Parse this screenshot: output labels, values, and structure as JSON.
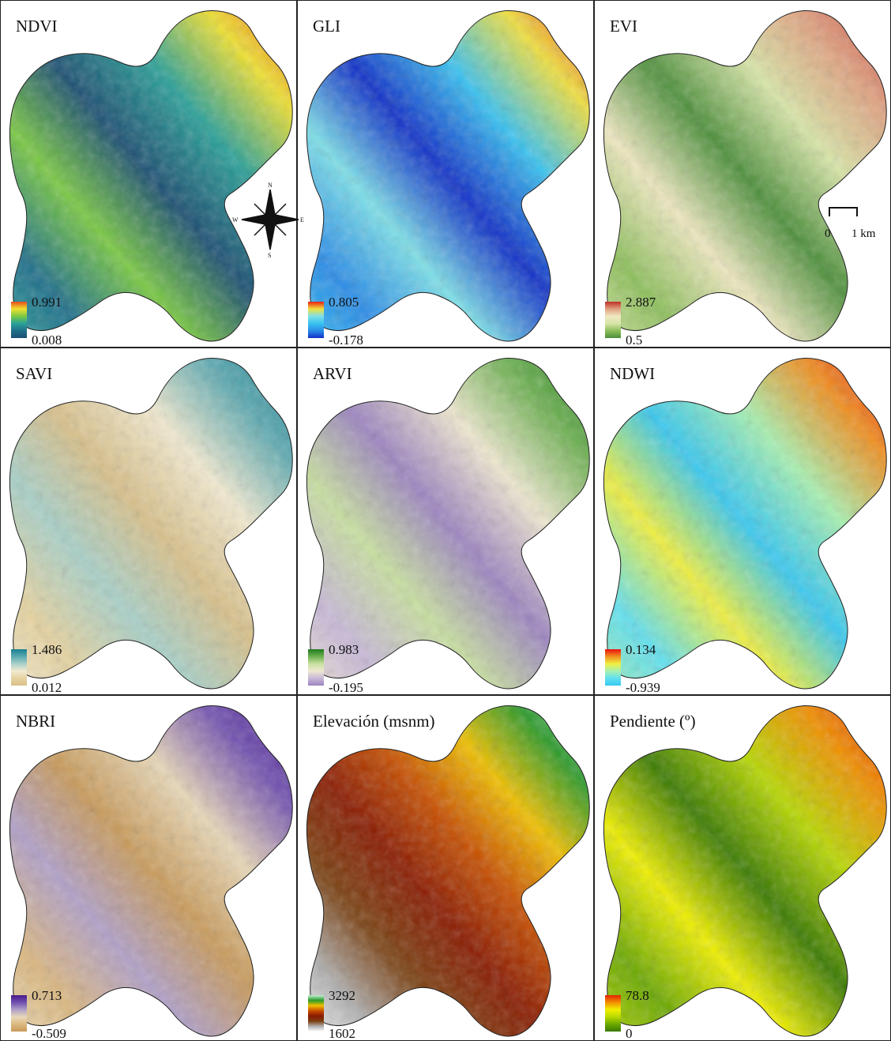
{
  "panels": [
    {
      "title": "NDVI",
      "legend_max": "0.991",
      "legend_min": "0.008"
    },
    {
      "title": "GLI",
      "legend_max": "0.805",
      "legend_min": "-0.178"
    },
    {
      "title": "EVI",
      "legend_max": "2.887",
      "legend_min": "0.5"
    },
    {
      "title": "SAVI",
      "legend_max": "1.486",
      "legend_min": "0.012"
    },
    {
      "title": "ARVI",
      "legend_max": "0.983",
      "legend_min": "-0.195"
    },
    {
      "title": "NDWI",
      "legend_max": "0.134",
      "legend_min": "-0.939"
    },
    {
      "title": "NBRI",
      "legend_max": "0.713",
      "legend_min": "-0.509"
    },
    {
      "title": "Elevación (msnm)",
      "legend_max": "3292",
      "legend_min": "1602"
    },
    {
      "title": "Pendiente (º)",
      "legend_max": "78.8",
      "legend_min": "0"
    }
  ],
  "compass": {
    "n": "N",
    "s": "S",
    "e": "E",
    "w": "W"
  },
  "scale_bar": {
    "start": "0",
    "end": "1 km"
  }
}
